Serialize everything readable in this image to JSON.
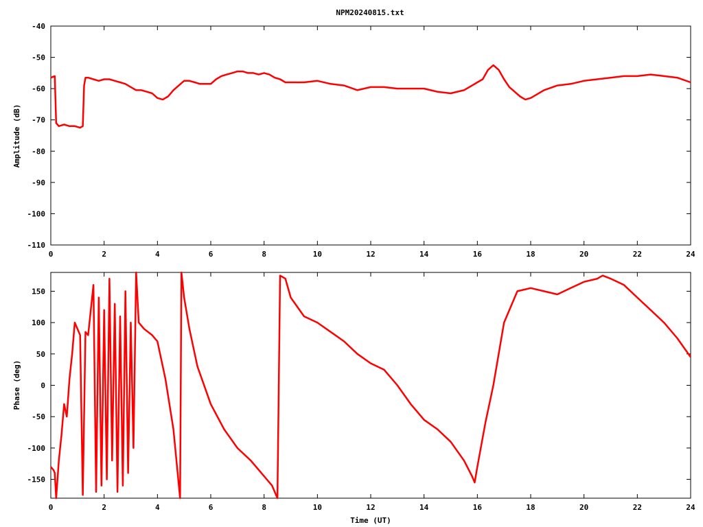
{
  "chart_data": [
    {
      "type": "line",
      "title": "NPM20240815.txt",
      "xlabel": "",
      "ylabel": "Amplitude (dB)",
      "xlim": [
        0,
        24
      ],
      "ylim": [
        -110,
        -40
      ],
      "x_ticks": [
        "0",
        "2",
        "4",
        "6",
        "8",
        "10",
        "12",
        "14",
        "16",
        "18",
        "20",
        "22",
        "24"
      ],
      "y_ticks": [
        "-40",
        "-50",
        "-60",
        "-70",
        "-80",
        "-90",
        "-100",
        "-110"
      ],
      "series": [
        {
          "name": "",
          "color": "#ff0000",
          "x": [
            0.0,
            0.15,
            0.2,
            0.3,
            0.5,
            0.7,
            0.9,
            1.1,
            1.2,
            1.25,
            1.3,
            1.4,
            1.6,
            1.8,
            2.0,
            2.2,
            2.4,
            2.6,
            2.8,
            3.0,
            3.2,
            3.4,
            3.6,
            3.8,
            4.0,
            4.2,
            4.4,
            4.6,
            4.8,
            5.0,
            5.2,
            5.4,
            5.6,
            5.8,
            6.0,
            6.2,
            6.4,
            6.6,
            6.8,
            7.0,
            7.2,
            7.4,
            7.6,
            7.8,
            8.0,
            8.2,
            8.4,
            8.6,
            8.8,
            9.0,
            9.5,
            10.0,
            10.5,
            11.0,
            11.5,
            12.0,
            12.5,
            13.0,
            13.5,
            14.0,
            14.5,
            15.0,
            15.5,
            15.8,
            16.0,
            16.2,
            16.4,
            16.6,
            16.8,
            17.0,
            17.2,
            17.4,
            17.6,
            17.8,
            18.0,
            18.2,
            18.5,
            19.0,
            19.5,
            20.0,
            20.5,
            21.0,
            21.5,
            22.0,
            22.5,
            23.0,
            23.5,
            24.0
          ],
          "y": [
            -56.5,
            -56,
            -71,
            -72,
            -71.5,
            -72,
            -72,
            -72.5,
            -72,
            -59,
            -56.5,
            -56.5,
            -57,
            -57.5,
            -57,
            -57,
            -57.5,
            -58,
            -58.5,
            -59.5,
            -60.5,
            -60.5,
            -61,
            -61.5,
            -63,
            -63.5,
            -62.5,
            -60.5,
            -59,
            -57.5,
            -57.5,
            -58,
            -58.5,
            -58.5,
            -58.5,
            -57,
            -56,
            -55.5,
            -55,
            -54.5,
            -54.5,
            -55,
            -55,
            -55.5,
            -55,
            -55.5,
            -56.5,
            -57,
            -58,
            -58,
            -58,
            -57.5,
            -58.5,
            -59,
            -60.5,
            -59.5,
            -59.5,
            -60,
            -60,
            -60,
            -61,
            -61.5,
            -60.5,
            -59,
            -58,
            -57,
            -54,
            -52.5,
            -54,
            -57,
            -59.5,
            -61,
            -62.5,
            -63.5,
            -63,
            -62,
            -60.5,
            -59,
            -58.5,
            -57.5,
            -57,
            -56.5,
            -56,
            -56,
            -55.5,
            -56,
            -56.5,
            -58
          ]
        }
      ]
    },
    {
      "type": "line",
      "title": "",
      "xlabel": "Time (UT)",
      "ylabel": "Phase (deg)",
      "xlim": [
        0,
        24
      ],
      "ylim": [
        -180,
        180
      ],
      "x_ticks": [
        "0",
        "2",
        "4",
        "6",
        "8",
        "10",
        "12",
        "14",
        "16",
        "18",
        "20",
        "22",
        "24"
      ],
      "y_ticks": [
        "150",
        "100",
        "50",
        "0",
        "-50",
        "-100",
        "-150"
      ],
      "series": [
        {
          "name": "",
          "color": "#ff0000",
          "x": [
            0.0,
            0.1,
            0.15,
            0.2,
            0.3,
            0.4,
            0.5,
            0.6,
            0.7,
            0.8,
            0.9,
            1.0,
            1.1,
            1.2,
            1.3,
            1.4,
            1.6,
            1.7,
            1.8,
            1.9,
            2.0,
            2.1,
            2.2,
            2.3,
            2.4,
            2.5,
            2.6,
            2.7,
            2.8,
            2.9,
            3.0,
            3.1,
            3.2,
            3.3,
            3.5,
            3.8,
            4.0,
            4.3,
            4.6,
            4.85,
            4.9,
            5.0,
            5.2,
            5.5,
            6.0,
            6.5,
            7.0,
            7.5,
            8.0,
            8.3,
            8.5,
            8.6,
            8.8,
            9.0,
            9.5,
            10.0,
            10.5,
            11.0,
            11.5,
            12.0,
            12.5,
            13.0,
            13.5,
            14.0,
            14.5,
            15.0,
            15.5,
            15.8,
            15.9,
            16.0,
            16.3,
            16.6,
            17.0,
            17.5,
            18.0,
            18.5,
            19.0,
            19.5,
            20.0,
            20.5,
            20.7,
            21.0,
            21.5,
            22.0,
            22.5,
            23.0,
            23.5,
            24.0
          ],
          "y": [
            -130,
            -135,
            -140,
            -180,
            -120,
            -80,
            -30,
            -50,
            10,
            50,
            100,
            90,
            80,
            -175,
            85,
            80,
            160,
            -170,
            140,
            -160,
            120,
            -150,
            170,
            -120,
            130,
            -170,
            110,
            -160,
            150,
            -140,
            100,
            -100,
            180,
            100,
            90,
            80,
            70,
            10,
            -70,
            -180,
            180,
            140,
            90,
            30,
            -30,
            -70,
            -100,
            -120,
            -145,
            -160,
            -180,
            175,
            170,
            140,
            110,
            100,
            85,
            70,
            50,
            35,
            25,
            0,
            -30,
            -55,
            -70,
            -90,
            -120,
            -145,
            -155,
            -130,
            -60,
            0,
            100,
            150,
            155,
            150,
            145,
            155,
            165,
            170,
            175,
            170,
            160,
            140,
            120,
            100,
            75,
            45
          ]
        }
      ]
    }
  ]
}
